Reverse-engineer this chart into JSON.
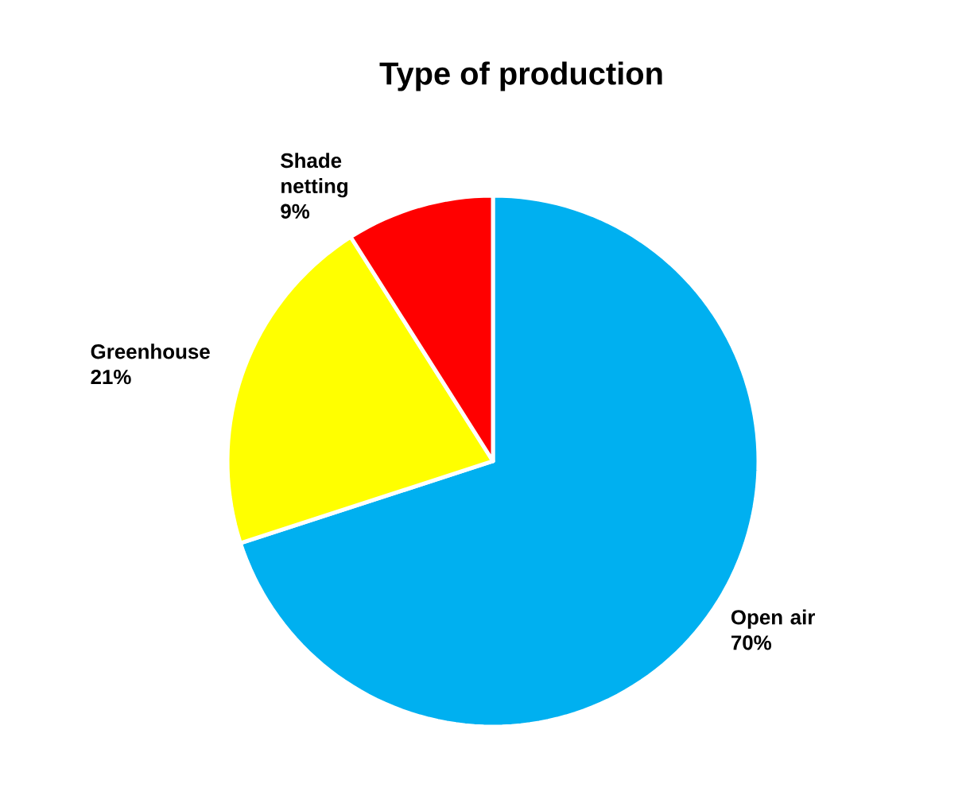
{
  "chart_data": {
    "type": "pie",
    "title": "Type of production",
    "categories": [
      "Open air",
      "Greenhouse",
      "Shade netting"
    ],
    "values": [
      70,
      21,
      9
    ],
    "colors": [
      "#00b0f0",
      "#ffff00",
      "#ff0000"
    ],
    "value_labels": [
      "70%",
      "21%",
      "9%"
    ]
  }
}
